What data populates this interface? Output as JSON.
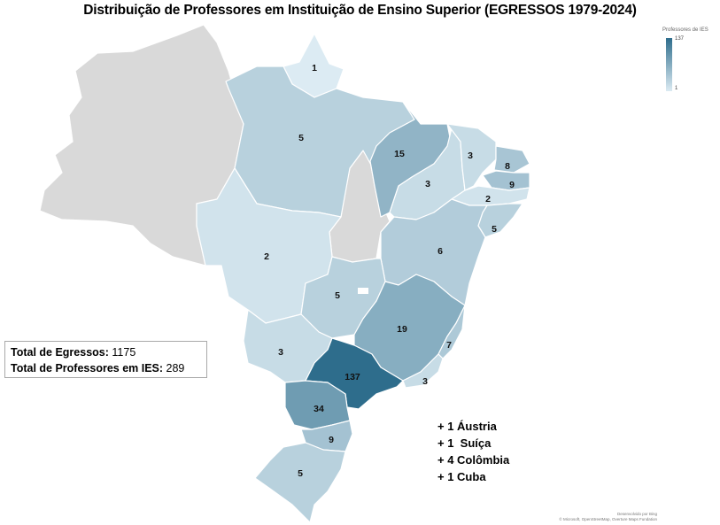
{
  "title": "Distribuição de Professores em Instituição de Ensino Superior (EGRESSOS 1979-2024)",
  "legend": {
    "title": "Professores de IES",
    "max": "137",
    "min": "1",
    "color_low": "#dcebf3",
    "color_high": "#2e6d8c"
  },
  "totals": {
    "egressos_label": "Total de Egressos:",
    "egressos_value": "1175",
    "professores_label": "Total de Professores em IES:",
    "professores_value": "289"
  },
  "abroad": [
    "+ 1 Áustria",
    "+ 1  Suíça",
    "+ 4 Colômbia",
    "+ 1 Cuba"
  ],
  "attribution": [
    "Desenvolvido por Bing",
    "© Microsoft, OpenStreetMap, Overture Maps Fundation"
  ],
  "colors": {
    "no_data": "#d9d9d9",
    "border": "#ffffff"
  },
  "states": [
    {
      "id": "AP",
      "value": 1
    },
    {
      "id": "PA",
      "value": 5
    },
    {
      "id": "MA",
      "value": 15
    },
    {
      "id": "PI",
      "value": 3
    },
    {
      "id": "CE",
      "value": 3
    },
    {
      "id": "RN",
      "value": 8
    },
    {
      "id": "PB",
      "value": 9
    },
    {
      "id": "PE",
      "value": 2
    },
    {
      "id": "AL-SE",
      "value": 5
    },
    {
      "id": "BA",
      "value": 6
    },
    {
      "id": "MT",
      "value": 2
    },
    {
      "id": "GO",
      "value": 5
    },
    {
      "id": "MG",
      "value": 19
    },
    {
      "id": "ES",
      "value": 7
    },
    {
      "id": "MS",
      "value": 3
    },
    {
      "id": "SP",
      "value": 137
    },
    {
      "id": "RJ",
      "value": 3
    },
    {
      "id": "PR",
      "value": 34
    },
    {
      "id": "SC",
      "value": 9
    },
    {
      "id": "RS",
      "value": 5
    }
  ]
}
